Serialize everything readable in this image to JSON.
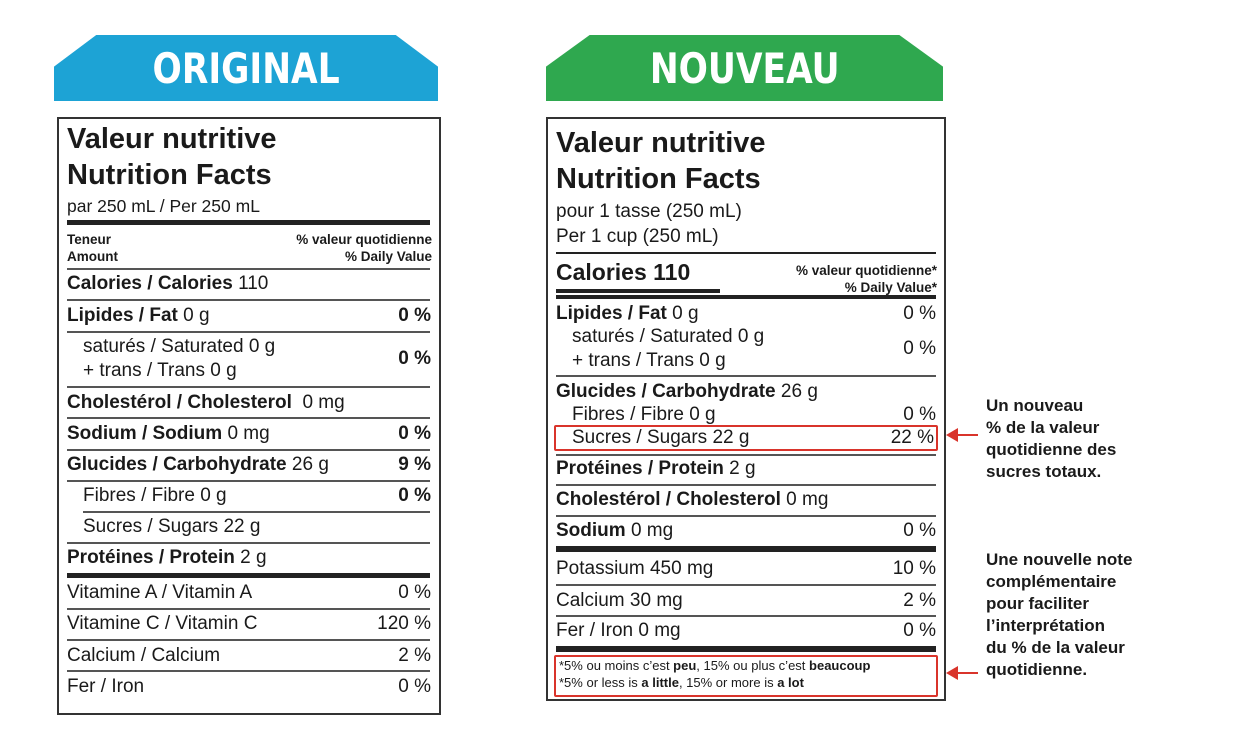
{
  "banners": {
    "original": "ORIGINAL",
    "new": "NOUVEAU"
  },
  "original": {
    "title_fr": "Valeur nutritive",
    "title_en": "Nutrition Facts",
    "serving": "par 250 mL / Per 250 mL",
    "teneur": "Teneur",
    "amount": "Amount",
    "dv_fr": "% valeur quotidienne",
    "dv_en": "% Daily Value",
    "calories": {
      "label": "Calories / Calories",
      "value": "110"
    },
    "fat": {
      "label": "Lipides / Fat",
      "amount": "0 g",
      "dv": "0 %"
    },
    "saturated": "saturés / Saturated 0 g",
    "trans": "+ trans / Trans 0 g",
    "sat_dv": "0 %",
    "cholesterol": {
      "label": "Cholestérol / Cholesterol",
      "amount": "0 mg"
    },
    "sodium": {
      "label": "Sodium / Sodium",
      "amount": "0 mg",
      "dv": "0 %"
    },
    "carbs": {
      "label": "Glucides / Carbohydrate",
      "amount": "26 g",
      "dv": "9 %"
    },
    "fibre": {
      "label": "Fibres / Fibre 0 g",
      "dv": "0 %"
    },
    "sugars": "Sucres / Sugars 22 g",
    "protein": {
      "label": "Protéines / Protein",
      "amount": "2 g"
    },
    "vitamin_a": {
      "label": "Vitamine A / Vitamin A",
      "dv": "0 %"
    },
    "vitamin_c": {
      "label": "Vitamine C / Vitamin C",
      "dv": "120 %"
    },
    "calcium": {
      "label": "Calcium / Calcium",
      "dv": "2 %"
    },
    "iron": {
      "label": "Fer / Iron",
      "dv": "0 %"
    }
  },
  "new": {
    "title_fr": "Valeur nutritive",
    "title_en": "Nutrition Facts",
    "serving_fr": "pour 1 tasse (250 mL)",
    "serving_en": "Per 1 cup (250 mL)",
    "calories": "Calories 110",
    "dv_fr": "% valeur quotidienne*",
    "dv_en": "% Daily Value*",
    "fat": {
      "label": "Lipides / Fat",
      "amount": "0 g",
      "dv": "0 %"
    },
    "saturated": "saturés / Saturated 0 g",
    "trans": "+ trans / Trans 0 g",
    "sat_dv": "0 %",
    "carbs": {
      "label": "Glucides / Carbohydrate",
      "amount": "26 g"
    },
    "fibre": {
      "label": "Fibres / Fibre 0 g",
      "dv": "0 %"
    },
    "sugars": {
      "label": "Sucres / Sugars 22 g",
      "dv": "22 %"
    },
    "protein": {
      "label": "Protéines / Protein",
      "amount": "2 g"
    },
    "cholesterol": {
      "label": "Cholestérol / Cholesterol",
      "amount": "0 mg"
    },
    "sodium": {
      "label": "Sodium",
      "amount": "0 mg",
      "dv": "0 %"
    },
    "potassium": {
      "label": "Potassium 450 mg",
      "dv": "10 %"
    },
    "calcium": {
      "label": "Calcium 30 mg",
      "dv": "2 %"
    },
    "iron": {
      "label": "Fer / Iron 0 mg",
      "dv": "0 %"
    },
    "footnote_fr": {
      "pre": "*5% ou moins c’est ",
      "b1": "peu",
      "mid": ", 15% ou plus c’est ",
      "b2": "beaucoup"
    },
    "footnote_en": {
      "pre": "*5% or less is ",
      "b1": "a little",
      "mid": ", 15% or more is ",
      "b2": "a lot"
    }
  },
  "annotations": {
    "sugars_note": [
      "Un nouveau",
      "% de la valeur",
      "quotidienne des",
      "sucres totaux."
    ],
    "footnote_note": [
      "Une nouvelle note",
      "complémentaire",
      "pour faciliter",
      "l’interprétation",
      "du % de la valeur",
      "quotidienne."
    ]
  },
  "colors": {
    "original_banner": "#1da3d5",
    "new_banner": "#2fa84f",
    "highlight": "#d9342b"
  }
}
